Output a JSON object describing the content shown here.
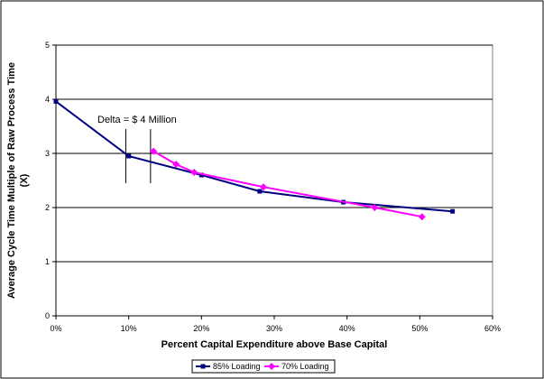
{
  "chart_data": {
    "type": "line",
    "title": "",
    "xlabel": "Percent  Capital Expenditure above  Base Capital",
    "ylabel_line1": "Average Cycle Time Multiple of Raw Process Time",
    "ylabel_line2": "(X)",
    "xlim": [
      0,
      60
    ],
    "ylim": [
      0,
      5
    ],
    "x_ticks": [
      0,
      10,
      20,
      30,
      40,
      50,
      60
    ],
    "x_tick_labels": [
      "0%",
      "10%",
      "20%",
      "30%",
      "40%",
      "50%",
      "60%"
    ],
    "y_ticks": [
      0,
      1,
      2,
      3,
      4,
      5
    ],
    "y_tick_labels": [
      "0",
      "1",
      "2",
      "3",
      "4",
      "5"
    ],
    "grid": "horizontal",
    "legend_placement": "bottom",
    "annotation": "Delta = $ 4 Million",
    "annotation_markers_x": [
      9.6,
      13.0
    ],
    "series": [
      {
        "name": "85% Loading",
        "color": "#000080",
        "marker": "square",
        "x": [
          0,
          10,
          20,
          28,
          39.5,
          54.5
        ],
        "y": [
          3.96,
          2.95,
          2.6,
          2.3,
          2.1,
          1.93
        ]
      },
      {
        "name": "70% Loading",
        "color": "#ff00ff",
        "marker": "diamond",
        "x": [
          13.4,
          16.5,
          19,
          28.5,
          43.8,
          50.3
        ],
        "y": [
          3.04,
          2.8,
          2.65,
          2.38,
          2.0,
          1.83
        ]
      }
    ]
  }
}
